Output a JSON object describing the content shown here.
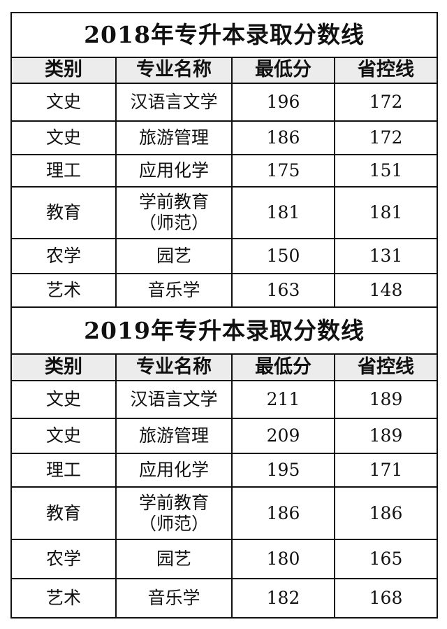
{
  "columns": [
    "类别",
    "专业名称",
    "最低分",
    "省控线"
  ],
  "tables": [
    {
      "title": "2018年专升本录取分数线",
      "rows": [
        {
          "category": "文史",
          "major": "汉语言文学",
          "min_score": "196",
          "control_line": "172"
        },
        {
          "category": "文史",
          "major": "旅游管理",
          "min_score": "186",
          "control_line": "172"
        },
        {
          "category": "理工",
          "major": "应用化学",
          "min_score": "175",
          "control_line": "151"
        },
        {
          "category": "教育",
          "major": "学前教育\n（师范）",
          "min_score": "181",
          "control_line": "181"
        },
        {
          "category": "农学",
          "major": "园艺",
          "min_score": "150",
          "control_line": "131"
        },
        {
          "category": "艺术",
          "major": "音乐学",
          "min_score": "163",
          "control_line": "148"
        }
      ]
    },
    {
      "title": "2019年专升本录取分数线",
      "rows": [
        {
          "category": "文史",
          "major": "汉语言文学",
          "min_score": "211",
          "control_line": "189"
        },
        {
          "category": "文史",
          "major": "旅游管理",
          "min_score": "209",
          "control_line": "189"
        },
        {
          "category": "理工",
          "major": "应用化学",
          "min_score": "195",
          "control_line": "171"
        },
        {
          "category": "教育",
          "major": "学前教育\n（师范）",
          "min_score": "186",
          "control_line": "186"
        },
        {
          "category": "农学",
          "major": "园艺",
          "min_score": "180",
          "control_line": "165"
        },
        {
          "category": "艺术",
          "major": "音乐学",
          "min_score": "182",
          "control_line": "168"
        }
      ]
    }
  ]
}
